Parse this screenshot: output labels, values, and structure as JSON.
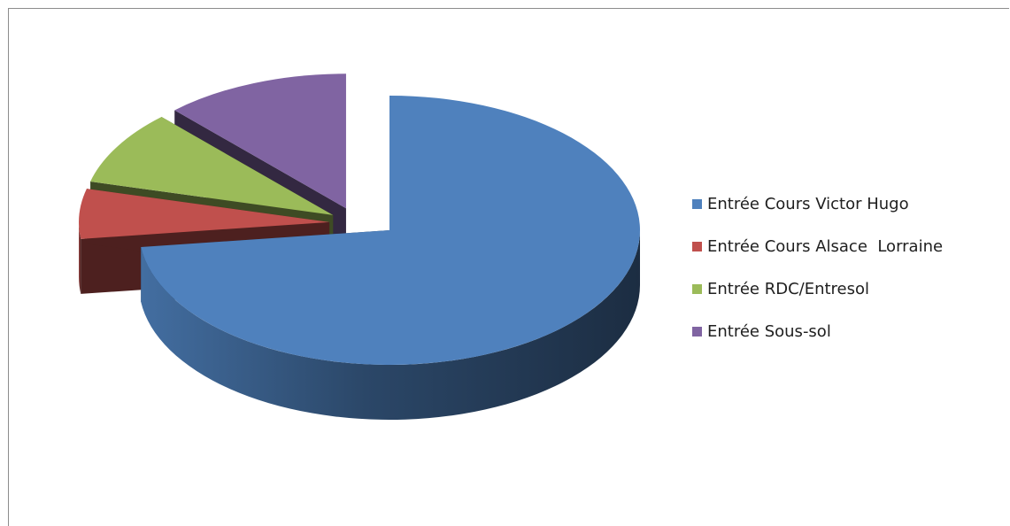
{
  "chart_data": {
    "type": "pie",
    "style": "3d-exploded",
    "labels": [
      "Entrée Cours Victor Hugo",
      "Entrée Cours Alsace  Lorraine",
      "Entrée RDC/Entresol",
      "Entrée Sous-sol"
    ],
    "values": [
      73,
      6,
      9,
      12
    ],
    "colors": [
      "#4f81bd",
      "#c0504d",
      "#9bbb59",
      "#8064a2"
    ],
    "legend_position": "right",
    "title": ""
  }
}
